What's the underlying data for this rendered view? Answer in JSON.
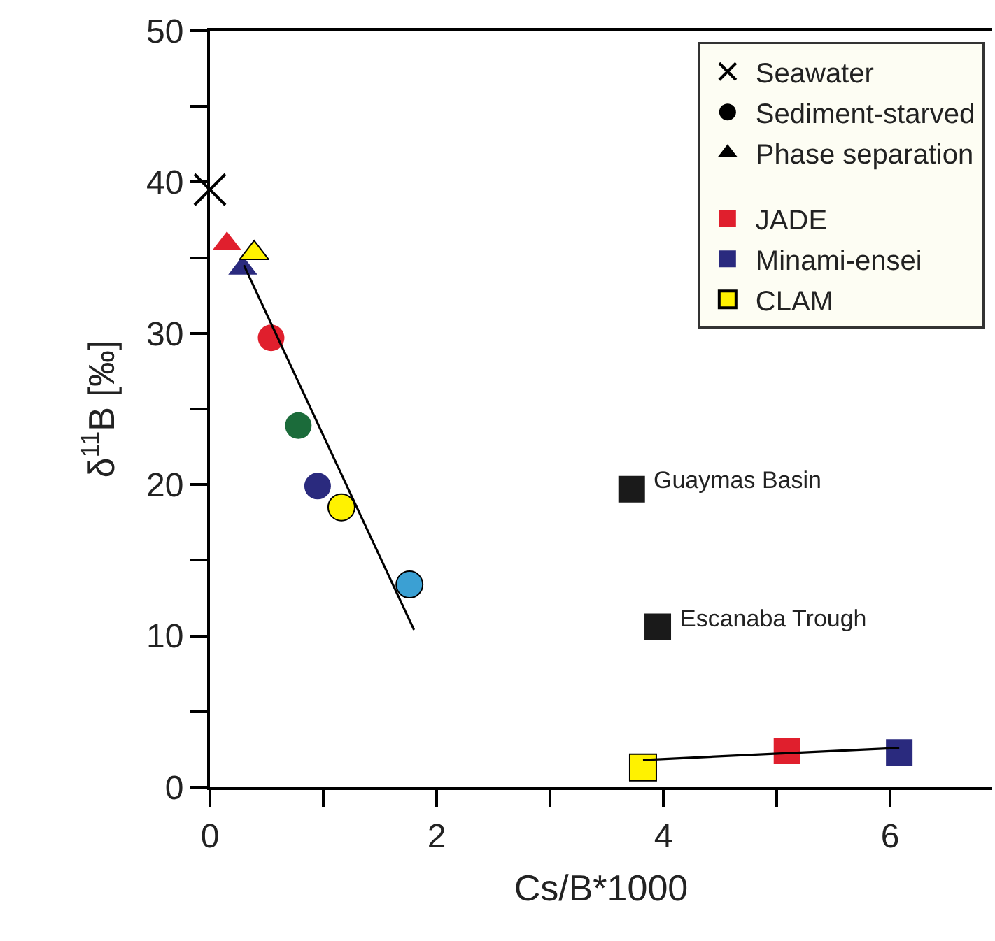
{
  "chart_data": {
    "type": "scatter",
    "xlabel": "Cs/B*1000",
    "ylabel": "δ$^{11}$B [‰]",
    "xlim": [
      0,
      6.9
    ],
    "ylim": [
      0,
      50
    ],
    "xticks": [
      0,
      {
        "value": 1,
        "label": null
      },
      2,
      {
        "value": 3,
        "label": null
      },
      4,
      {
        "value": 5,
        "label": null
      },
      6
    ],
    "yticks": [
      0,
      {
        "value": 5,
        "label": null
      },
      10,
      {
        "value": 15,
        "label": null
      },
      20,
      {
        "value": 25,
        "label": null
      },
      30,
      {
        "value": 35,
        "label": null
      },
      40,
      {
        "value": 45,
        "label": null
      },
      50
    ],
    "legend": "top right",
    "annotations": [
      {
        "text": "Guaymas Basin",
        "x": 3.72,
        "y": 19.7
      },
      {
        "text": "Escanaba Trough",
        "x": 3.95,
        "y": 10.6
      }
    ],
    "series": [
      {
        "name": "Seawater",
        "color": "#000000",
        "marker": "cross",
        "x": [
          0
        ],
        "values": [
          39.5
        ]
      },
      {
        "name": "Sediment-starved",
        "color": "#000000",
        "marker": "circle"
      },
      {
        "name": "Phase separation",
        "color": "#000000",
        "marker": "triangle"
      },
      {
        "name": "JADE",
        "color": "#e01f2d",
        "marker": "square"
      },
      {
        "name": "Minami-ensei",
        "color": "#2a2a7e",
        "marker": "square"
      },
      {
        "name": "CLAM",
        "color": "#fff200",
        "marker": "square"
      },
      {
        "marker": "triangle",
        "x": [
          0.15,
          0.29,
          0.39
        ],
        "values": [
          35.9,
          34.3,
          35.3
        ],
        "colors": [
          "#e01f2d",
          "#2a2a7e",
          "#fff200"
        ]
      },
      {
        "marker": "circle",
        "x": [
          0.54,
          0.78,
          0.95,
          1.16,
          1.76
        ],
        "values": [
          29.7,
          23.9,
          19.9,
          18.5,
          13.4
        ],
        "colors": [
          "#e01f2d",
          "#1b6b3a",
          "#2a2a7e",
          "#fff200",
          "#3ba0d3"
        ]
      },
      {
        "marker": "square",
        "x": [
          3.72,
          3.95,
          3.82,
          5.09,
          6.08
        ],
        "values": [
          19.7,
          10.6,
          1.3,
          2.4,
          2.3
        ],
        "colors": [
          "#1a1a1a",
          "#1a1a1a",
          "#fff200",
          "#e01f2d",
          "#2a2a7e"
        ]
      },
      {
        "type": "line",
        "color": "#000000",
        "marker": "none",
        "x": [
          0.3,
          1.8
        ],
        "values": [
          34.5,
          10.4
        ]
      },
      {
        "type": "line",
        "color": "#000000",
        "marker": "none",
        "x": [
          3.82,
          6.08
        ],
        "values": [
          1.8,
          2.6
        ]
      }
    ]
  }
}
